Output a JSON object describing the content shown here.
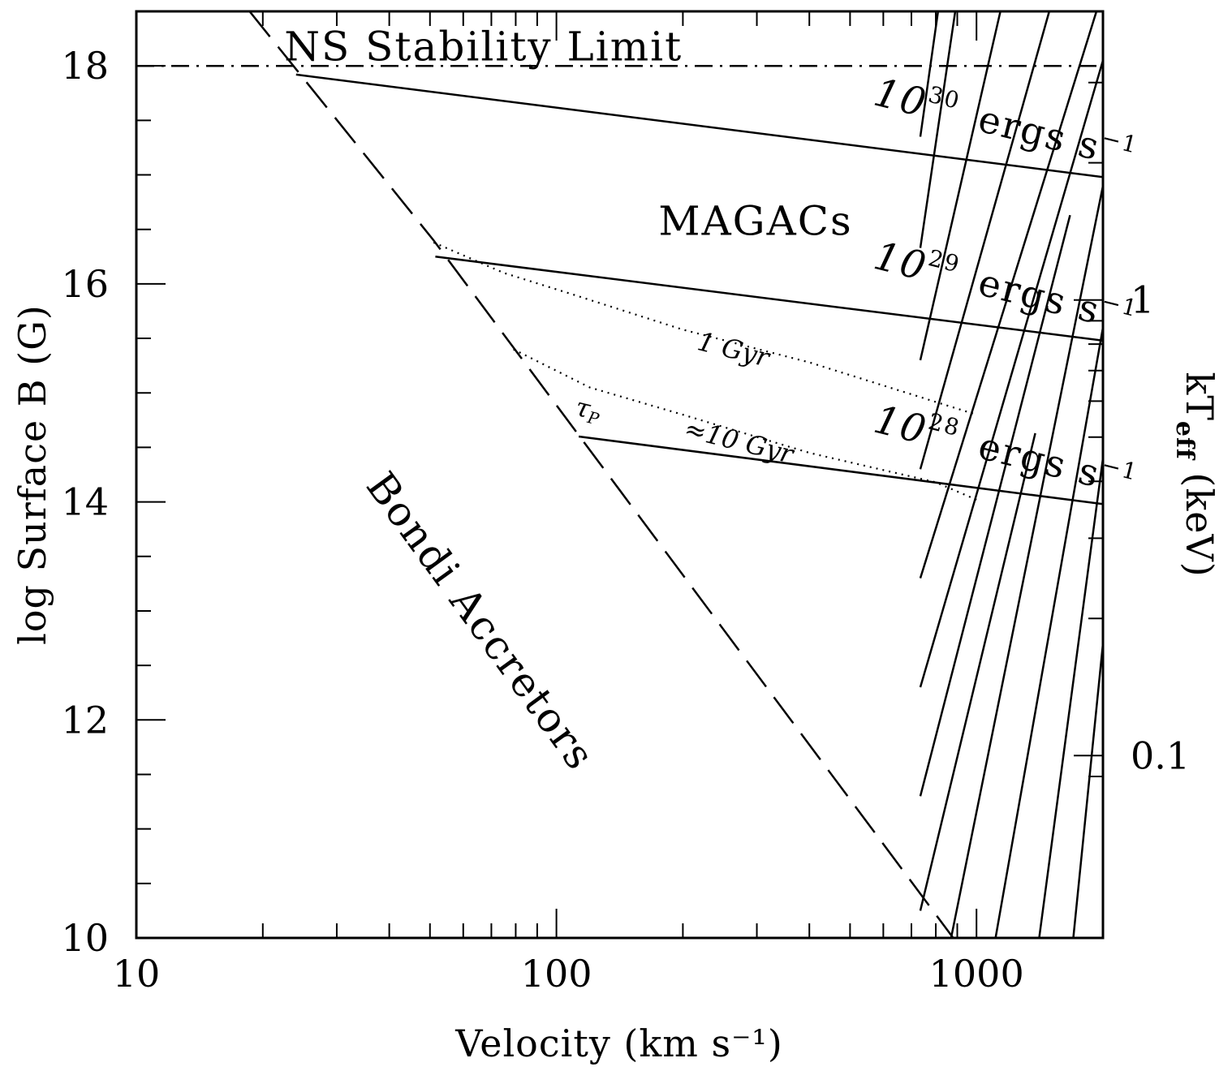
{
  "chart_data": {
    "type": "line",
    "title": "",
    "xlabel": "Velocity (km s⁻¹)",
    "ylabel": "log Surface B (G)",
    "y2label_main": "kT",
    "y2label_sub": "eff",
    "y2label_unit": " (keV)",
    "x_scale": "log",
    "xlim": [
      10,
      2000
    ],
    "ylim": [
      10,
      18.5
    ],
    "x_tick_labels": [
      {
        "value": 10,
        "label": "10"
      },
      {
        "value": 100,
        "label": "100"
      },
      {
        "value": 1000,
        "label": "1000"
      }
    ],
    "y_tick_labels": [
      {
        "value": 10,
        "label": "10"
      },
      {
        "value": 12,
        "label": "12"
      },
      {
        "value": 14,
        "label": "14"
      },
      {
        "value": 16,
        "label": "16"
      },
      {
        "value": 18,
        "label": "18"
      }
    ],
    "y_minor_step": 0.5,
    "y2_tick_labels": [
      {
        "value": 0.1,
        "label": "0.1"
      },
      {
        "value": 1,
        "label": "1"
      }
    ],
    "y2_minor_ticks": [
      0.09,
      0.2,
      0.3,
      0.4,
      0.5,
      0.6,
      0.7,
      0.8,
      0.9,
      2,
      3
    ],
    "y2_scale": "log",
    "y2lim": [
      0.0398,
      4.3
    ],
    "grid": false,
    "series": [
      {
        "style": "dash-dot",
        "x": [
          10,
          2000
        ],
        "y": [
          18.0,
          18.0
        ]
      },
      {
        "style": "dashed",
        "x": [
          18.6,
          51,
          880
        ],
        "y": [
          18.5,
          16.4,
          10.0
        ]
      },
      {
        "style": "solid",
        "x": [
          24,
          2000
        ],
        "y": [
          17.92,
          16.98
        ]
      },
      {
        "style": "solid",
        "x": [
          51.5,
          2000
        ],
        "y": [
          16.25,
          15.48
        ]
      },
      {
        "style": "solid",
        "x": [
          113,
          2000
        ],
        "y": [
          14.6,
          13.98
        ]
      },
      {
        "style": "dotted",
        "x": [
          51,
          75,
          110,
          200,
          400,
          1000
        ],
        "y": [
          16.38,
          16.1,
          15.9,
          15.58,
          15.28,
          14.8
        ]
      },
      {
        "style": "dotted",
        "x": [
          79,
          120,
          200,
          400,
          800,
          1000
        ],
        "y": [
          15.4,
          15.05,
          14.8,
          14.45,
          14.18,
          14.02
        ]
      }
    ],
    "hatch_lines": [
      {
        "x1": 735,
        "y1": 10.25,
        "x2": 1380,
        "y2": 14.63
      },
      {
        "x1": 735,
        "y1": 11.3,
        "x2": 1670,
        "y2": 16.63
      },
      {
        "x1": 735,
        "y1": 12.3,
        "x2": 2000,
        "y2": 18.05
      },
      {
        "x1": 735,
        "y1": 13.3,
        "x2": 1930,
        "y2": 18.5
      },
      {
        "x1": 735,
        "y1": 14.3,
        "x2": 1490,
        "y2": 18.5
      },
      {
        "x1": 735,
        "y1": 15.3,
        "x2": 1140,
        "y2": 18.5
      },
      {
        "x1": 735,
        "y1": 16.33,
        "x2": 890,
        "y2": 18.5
      },
      {
        "x1": 735,
        "y1": 17.35,
        "x2": 810,
        "y2": 18.5
      },
      {
        "x1": 870,
        "y1": 10.0,
        "x2": 2000,
        "y2": 16.9
      },
      {
        "x1": 1110,
        "y1": 10.0,
        "x2": 2000,
        "y2": 15.6
      },
      {
        "x1": 1410,
        "y1": 10.0,
        "x2": 2000,
        "y2": 14.4
      },
      {
        "x1": 1700,
        "y1": 10.0,
        "x2": 2000,
        "y2": 12.7
      }
    ],
    "annotations": [
      {
        "text": "NS Stability Limit",
        "x": 22.5,
        "y": 18.05,
        "style": "big"
      },
      {
        "text": "MAGACs",
        "x": 175,
        "y": 16.45,
        "style": "big"
      },
      {
        "text": "Bondi Accretors",
        "x": 35,
        "y": 14.15,
        "rotate": 54,
        "style": "big"
      },
      {
        "text": "1 Gyr",
        "x": 215,
        "y": 15.4,
        "rotate": 14,
        "style": "small"
      },
      {
        "text": "τ",
        "x": 110,
        "y": 14.8,
        "rotate": 14,
        "style": "small-sym"
      },
      {
        "text": "P",
        "x": 118,
        "y": 14.73,
        "rotate": 14,
        "style": "small-sub"
      },
      {
        "text": "≈10 Gyr",
        "x": 200,
        "y": 14.6,
        "rotate": 14,
        "style": "small"
      }
    ],
    "luminosity_labels": [
      {
        "base": "10",
        "exponent": "30",
        "unit": "ergs s",
        "unit_exp": "−1",
        "x": 1150,
        "y": 17.35
      },
      {
        "base": "10",
        "exponent": "29",
        "unit": "ergs s",
        "unit_exp": "−1",
        "x": 1150,
        "y": 15.85
      },
      {
        "base": "10",
        "exponent": "28",
        "unit": "ergs s",
        "unit_exp": "−1",
        "x": 1150,
        "y": 14.35
      }
    ]
  }
}
